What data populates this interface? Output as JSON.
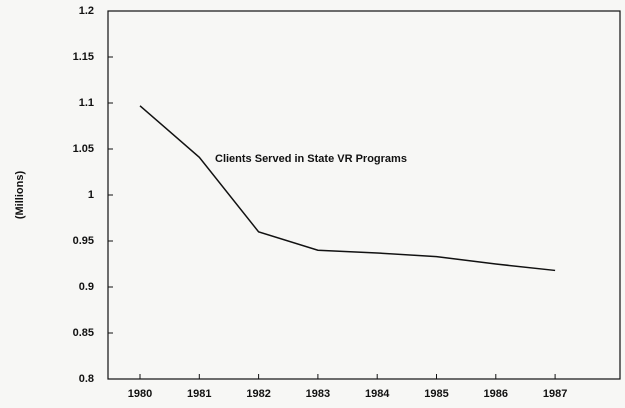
{
  "chart_data": {
    "type": "line",
    "annotation": "Clients Served in State VR Programs",
    "y_label": "(Millions)",
    "categories": [
      "1980",
      "1981",
      "1982",
      "1983",
      "1984",
      "1985",
      "1986",
      "1987"
    ],
    "values": [
      1.097,
      1.041,
      0.96,
      0.94,
      0.937,
      0.933,
      0.925,
      0.918
    ],
    "color": "#111111",
    "ylim": [
      0.8,
      1.2
    ],
    "yticks": [
      0.8,
      0.85,
      0.9,
      0.95,
      1,
      1.05,
      1.1,
      1.15,
      1.2
    ]
  }
}
